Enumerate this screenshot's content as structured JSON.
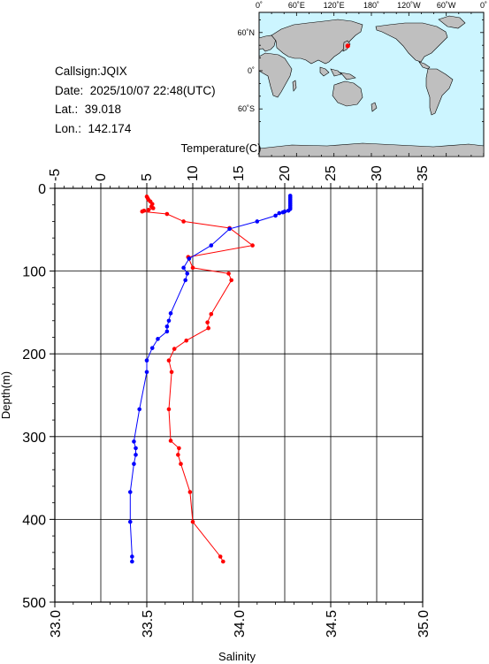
{
  "station": {
    "callsign_line": "Callsign:JQIX",
    "date_line": "Date:  2025/10/07 22:48(UTC)",
    "lat_line": "Lat.:  39.018",
    "lon_line": "Lon.:  142.174"
  },
  "map": {
    "top_tick_labels": [
      "0˚",
      "60˚E",
      "120˚E",
      "180˚",
      "120˚W",
      "60˚W",
      "0˚"
    ],
    "left_tick_labels": [
      "60˚N",
      "0˚",
      "60˚S"
    ],
    "ocean_color": "#ccf5ff",
    "land_color": "#bfbfbf",
    "marker_color": "#ff0000",
    "marker_lon": 142.174,
    "marker_lat": 39.018
  },
  "colors": {
    "temperature": "#ff0000",
    "salinity": "#0000ff"
  },
  "chart_data": {
    "type": "line",
    "ylabel": "Depth(m)",
    "ylim": [
      0,
      500
    ],
    "y_reversed": true,
    "y_ticks": [
      0,
      100,
      200,
      300,
      400,
      500
    ],
    "top_axis": {
      "label": "Temperature(C)",
      "range": [
        -5,
        35
      ],
      "ticks": [
        -5,
        0,
        5,
        10,
        15,
        20,
        25,
        30,
        35
      ]
    },
    "bottom_axis": {
      "label": "Salinity",
      "range": [
        33.0,
        35.0
      ],
      "ticks": [
        "33.0",
        "33.5",
        "34.0",
        "34.5",
        "35.0"
      ]
    },
    "grid": true,
    "series": [
      {
        "axis": "top",
        "color": "#ff0000",
        "points": [
          [
            5.0,
            10
          ],
          [
            5.1,
            12
          ],
          [
            5.2,
            14
          ],
          [
            5.4,
            16
          ],
          [
            5.6,
            19
          ],
          [
            5.5,
            22
          ],
          [
            5.7,
            24
          ],
          [
            5.2,
            26
          ],
          [
            4.7,
            27
          ],
          [
            4.5,
            28
          ],
          [
            7.2,
            31
          ],
          [
            9.0,
            40
          ],
          [
            14.0,
            48
          ],
          [
            16.5,
            69
          ],
          [
            9.5,
            83
          ],
          [
            10.0,
            96
          ],
          [
            13.9,
            103
          ],
          [
            14.2,
            111
          ],
          [
            12.0,
            152
          ],
          [
            11.6,
            162
          ],
          [
            11.7,
            169
          ],
          [
            9.3,
            184
          ],
          [
            8.0,
            194
          ],
          [
            7.4,
            208
          ],
          [
            7.7,
            222
          ],
          [
            7.4,
            267
          ],
          [
            7.6,
            305
          ],
          [
            8.5,
            314
          ],
          [
            8.4,
            322
          ],
          [
            8.7,
            333
          ],
          [
            9.7,
            367
          ],
          [
            10.0,
            403
          ],
          [
            13.0,
            445
          ],
          [
            13.3,
            451
          ]
        ]
      },
      {
        "axis": "bottom",
        "color": "#0000ff",
        "points": [
          [
            34.28,
            9
          ],
          [
            34.28,
            11
          ],
          [
            34.28,
            13
          ],
          [
            34.28,
            15
          ],
          [
            34.28,
            17
          ],
          [
            34.28,
            19
          ],
          [
            34.28,
            21
          ],
          [
            34.28,
            23
          ],
          [
            34.28,
            25
          ],
          [
            34.27,
            27
          ],
          [
            34.25,
            28
          ],
          [
            34.24,
            29
          ],
          [
            34.22,
            30
          ],
          [
            34.2,
            33
          ],
          [
            34.1,
            40
          ],
          [
            33.95,
            49
          ],
          [
            33.85,
            69
          ],
          [
            33.73,
            85
          ],
          [
            33.7,
            96
          ],
          [
            33.72,
            103
          ],
          [
            33.71,
            111
          ],
          [
            33.63,
            151
          ],
          [
            33.62,
            160
          ],
          [
            33.61,
            167
          ],
          [
            33.61,
            173
          ],
          [
            33.56,
            182
          ],
          [
            33.53,
            193
          ],
          [
            33.5,
            208
          ],
          [
            33.5,
            222
          ],
          [
            33.46,
            267
          ],
          [
            33.43,
            306
          ],
          [
            33.44,
            314
          ],
          [
            33.44,
            322
          ],
          [
            33.43,
            333
          ],
          [
            33.41,
            367
          ],
          [
            33.41,
            403
          ],
          [
            33.42,
            445
          ],
          [
            33.42,
            451
          ]
        ]
      }
    ]
  }
}
